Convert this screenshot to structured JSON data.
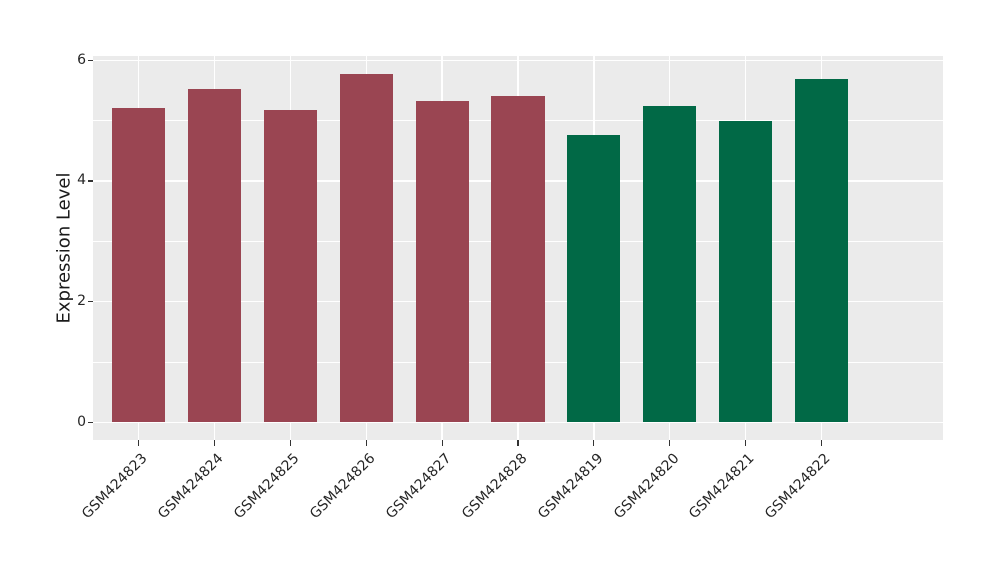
{
  "chart_data": {
    "type": "bar",
    "title": "",
    "xlabel": "",
    "ylabel": "Expression Level",
    "categories": [
      "GSM424823",
      "GSM424824",
      "GSM424825",
      "GSM424826",
      "GSM424827",
      "GSM424828",
      "GSM424819",
      "GSM424820",
      "GSM424821",
      "GSM424822"
    ],
    "values": [
      5.21,
      5.52,
      5.18,
      5.78,
      5.33,
      5.4,
      4.76,
      5.25,
      5.0,
      5.69
    ],
    "bar_groups": [
      "group1",
      "group1",
      "group1",
      "group1",
      "group1",
      "group1",
      "group2",
      "group2",
      "group2",
      "group2"
    ],
    "group_colors": {
      "group1": "#9A4552",
      "group2": "#016946"
    },
    "ylim": [
      -0.29,
      6.07
    ],
    "yticks": [
      0,
      2,
      4,
      6
    ],
    "yticks_minor": [
      1,
      3,
      5
    ],
    "x_label_rotation_deg": 45,
    "grid": true,
    "legend": "none",
    "panel_bg": "#EBEBEB",
    "grid_color": "#FFFFFF",
    "tick_color": "#333333",
    "bar_width_fraction": 0.7
  }
}
